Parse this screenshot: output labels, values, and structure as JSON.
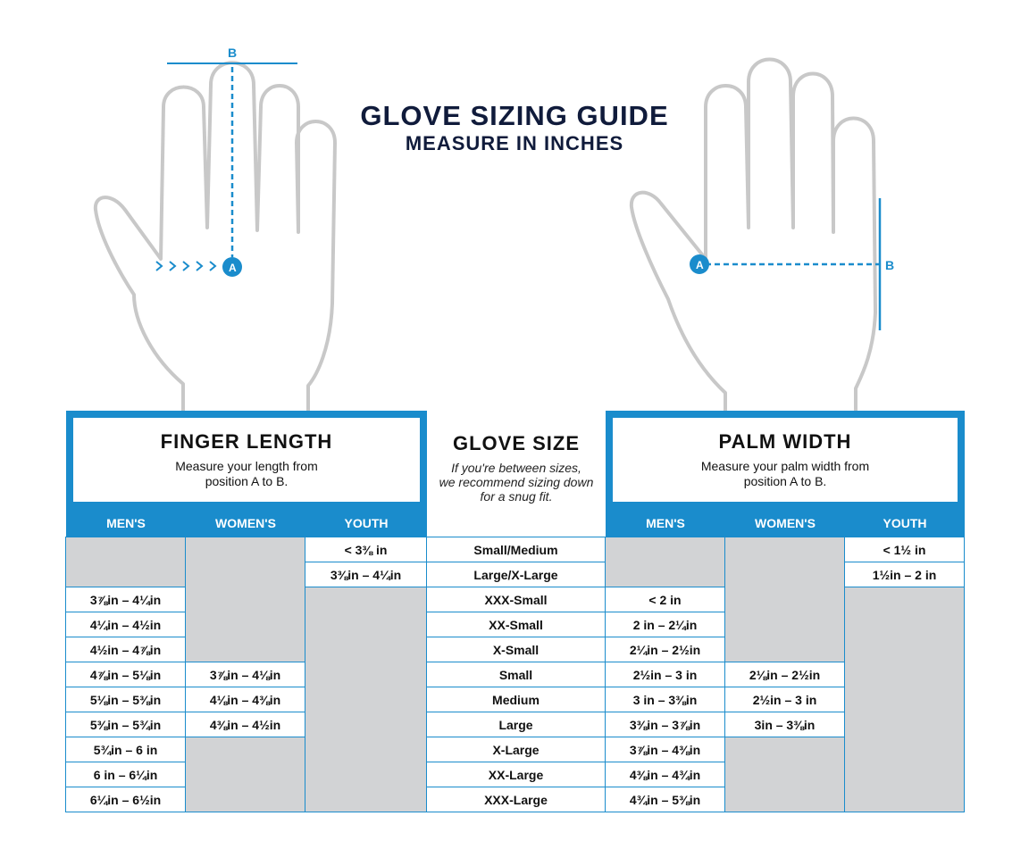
{
  "title": "GLOVE SIZING GUIDE",
  "subtitle": "MEASURE IN INCHES",
  "diagram_labels": {
    "a": "A",
    "b": "B"
  },
  "colors": {
    "accent": "#1a8ccc",
    "title": "#101b3b",
    "empty_cell": "#d2d3d5",
    "hand_outline": "#c8c8c8"
  },
  "finger_length": {
    "heading": "FINGER LENGTH",
    "description_line1": "Measure your length from",
    "description_line2": "position A to B.",
    "columns": [
      "MEN'S",
      "WOMEN'S",
      "YOUTH"
    ]
  },
  "glove_size": {
    "heading": "GLOVE SIZE",
    "note_line1": "If you're between sizes,",
    "note_line2": "we recommend sizing down",
    "note_line3": "for a snug fit."
  },
  "palm_width": {
    "heading": "PALM WIDTH",
    "description_line1": "Measure your palm width from",
    "description_line2": "position A to B.",
    "columns": [
      "MEN'S",
      "WOMEN'S",
      "YOUTH"
    ]
  },
  "rows": [
    {
      "size": "Small/Medium",
      "finger_mens": null,
      "finger_womens": null,
      "finger_youth": "< 3⅜ in",
      "palm_mens": null,
      "palm_womens": null,
      "palm_youth": "< 1½ in"
    },
    {
      "size": "Large/X-Large",
      "finger_mens": null,
      "finger_womens": null,
      "finger_youth": "3⅜in – 4¼in",
      "palm_mens": null,
      "palm_womens": null,
      "palm_youth": "1½in – 2 in"
    },
    {
      "size": "XXX-Small",
      "finger_mens": "3⅞in – 4¼in",
      "finger_womens": null,
      "finger_youth": null,
      "palm_mens": "< 2 in",
      "palm_womens": null,
      "palm_youth": null
    },
    {
      "size": "XX-Small",
      "finger_mens": "4¼in – 4½in",
      "finger_womens": null,
      "finger_youth": null,
      "palm_mens": "2 in – 2¼in",
      "palm_womens": null,
      "palm_youth": null
    },
    {
      "size": "X-Small",
      "finger_mens": "4½in – 4⅞in",
      "finger_womens": null,
      "finger_youth": null,
      "palm_mens": "2¼in – 2½in",
      "palm_womens": null,
      "palm_youth": null
    },
    {
      "size": "Small",
      "finger_mens": "4⅞in – 5⅛in",
      "finger_womens": "3⅞in – 4⅛in",
      "finger_youth": null,
      "palm_mens": "2½in – 3 in",
      "palm_womens": "2⅛in – 2½in",
      "palm_youth": null
    },
    {
      "size": "Medium",
      "finger_mens": "5⅛in – 5⅜in",
      "finger_womens": "4⅛in – 4⅜in",
      "finger_youth": null,
      "palm_mens": "3 in – 3⅜in",
      "palm_womens": "2½in – 3 in",
      "palm_youth": null
    },
    {
      "size": "Large",
      "finger_mens": "5⅜in – 5¾in",
      "finger_womens": "4⅜in – 4½in",
      "finger_youth": null,
      "palm_mens": "3⅜in – 3⅞in",
      "palm_womens": "3in – 3⅜in",
      "palm_youth": null
    },
    {
      "size": "X-Large",
      "finger_mens": "5¾in – 6 in",
      "finger_womens": null,
      "finger_youth": null,
      "palm_mens": "3⅞in – 4⅜in",
      "palm_womens": null,
      "palm_youth": null
    },
    {
      "size": "XX-Large",
      "finger_mens": "6 in – 6¼in",
      "finger_womens": null,
      "finger_youth": null,
      "palm_mens": "4⅜in – 4¾in",
      "palm_womens": null,
      "palm_youth": null
    },
    {
      "size": "XXX-Large",
      "finger_mens": "6¼in – 6½in",
      "finger_womens": null,
      "finger_youth": null,
      "palm_mens": "4¾in – 5⅜in",
      "palm_womens": null,
      "palm_youth": null
    }
  ]
}
